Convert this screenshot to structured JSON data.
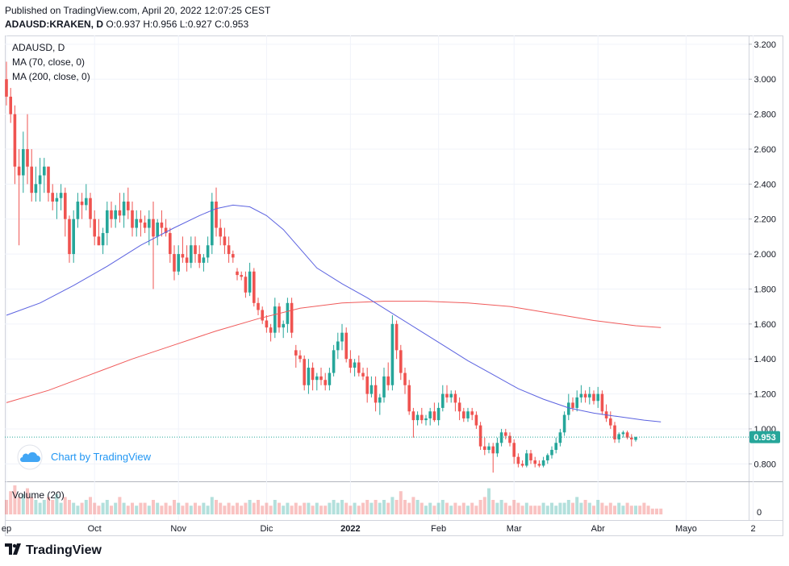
{
  "header": {
    "published": "Published on TradingView.com, April 20, 2022 12:07:25 CEST",
    "symbol": "ADAUSD:KRAKEN, D",
    "ohlc": "O:0.937 H:0.956 L:0.927 C:0.953"
  },
  "legend": {
    "title": "ADAUSD, D",
    "ma70": "MA (70, close, 0)",
    "ma200": "MA (200, close, 0)"
  },
  "watermark": "Chart by TradingView",
  "volume_label": "Volume (20)",
  "footer_brand": "TradingView",
  "colors": {
    "up": "#26a69a",
    "down": "#ef5350",
    "ma70": "#5b62e0",
    "ma200": "#f05a5a",
    "price_tag": "#26a69a"
  },
  "chart_data": {
    "type": "candlestick",
    "ylim": [
      0.7,
      3.25
    ],
    "y_ticks": [
      "3.200",
      "3.000",
      "2.800",
      "2.600",
      "2.400",
      "2.200",
      "2.000",
      "1.800",
      "1.600",
      "1.400",
      "1.200",
      "1.000",
      "0.800"
    ],
    "volume_ticks": [
      "0"
    ],
    "x_labels": [
      "ep",
      "Oct",
      "Nov",
      "Dic",
      "2022",
      "Feb",
      "Mar",
      "Abr",
      "Mayo",
      "2"
    ],
    "last_price": "0.953",
    "ohlc_series": [
      [
        3.0,
        3.1,
        2.85,
        2.9
      ],
      [
        2.9,
        2.95,
        2.75,
        2.8
      ],
      [
        2.8,
        2.85,
        2.4,
        2.5
      ],
      [
        2.5,
        2.6,
        2.05,
        2.45
      ],
      [
        2.45,
        2.7,
        2.35,
        2.6
      ],
      [
        2.6,
        2.8,
        2.4,
        2.5
      ],
      [
        2.5,
        2.6,
        2.3,
        2.35
      ],
      [
        2.35,
        2.5,
        2.3,
        2.4
      ],
      [
        2.4,
        2.55,
        2.3,
        2.45
      ],
      [
        2.45,
        2.55,
        2.35,
        2.5
      ],
      [
        2.5,
        2.5,
        2.3,
        2.35
      ],
      [
        2.35,
        2.4,
        2.25,
        2.3
      ],
      [
        2.3,
        2.35,
        2.2,
        2.32
      ],
      [
        2.32,
        2.4,
        2.25,
        2.35
      ],
      [
        2.35,
        2.38,
        2.1,
        2.2
      ],
      [
        2.2,
        2.22,
        1.95,
        2.0
      ],
      [
        2.0,
        2.25,
        1.95,
        2.2
      ],
      [
        2.2,
        2.35,
        2.15,
        2.3
      ],
      [
        2.3,
        2.35,
        2.2,
        2.28
      ],
      [
        2.28,
        2.4,
        2.25,
        2.32
      ],
      [
        2.32,
        2.35,
        2.15,
        2.2
      ],
      [
        2.2,
        2.25,
        2.05,
        2.1
      ],
      [
        2.1,
        2.2,
        2.05,
        2.05
      ],
      [
        2.05,
        2.15,
        2.0,
        2.12
      ],
      [
        2.12,
        2.3,
        2.05,
        2.25
      ],
      [
        2.25,
        2.3,
        2.15,
        2.2
      ],
      [
        2.2,
        2.28,
        2.15,
        2.25
      ],
      [
        2.25,
        2.35,
        2.18,
        2.22
      ],
      [
        2.22,
        2.35,
        2.15,
        2.3
      ],
      [
        2.3,
        2.38,
        2.2,
        2.25
      ],
      [
        2.25,
        2.3,
        2.1,
        2.15
      ],
      [
        2.15,
        2.25,
        2.1,
        2.2
      ],
      [
        2.2,
        2.25,
        2.1,
        2.18
      ],
      [
        2.18,
        2.22,
        2.12,
        2.15
      ],
      [
        2.15,
        2.25,
        2.05,
        2.2
      ],
      [
        2.2,
        2.3,
        1.8,
        2.1
      ],
      [
        2.1,
        2.2,
        2.05,
        2.18
      ],
      [
        2.18,
        2.25,
        2.1,
        2.15
      ],
      [
        2.15,
        2.2,
        2.1,
        2.12
      ],
      [
        2.12,
        2.15,
        1.95,
        2.0
      ],
      [
        2.0,
        2.05,
        1.85,
        1.9
      ],
      [
        1.9,
        2.05,
        1.88,
        2.0
      ],
      [
        2.0,
        2.1,
        1.95,
        1.98
      ],
      [
        1.98,
        2.05,
        1.9,
        1.95
      ],
      [
        1.95,
        2.1,
        1.92,
        2.05
      ],
      [
        2.05,
        2.1,
        1.95,
        2.0
      ],
      [
        2.0,
        2.05,
        1.92,
        1.95
      ],
      [
        1.95,
        2.0,
        1.9,
        1.98
      ],
      [
        1.98,
        2.1,
        1.95,
        2.05
      ],
      [
        2.05,
        2.35,
        2.0,
        2.3
      ],
      [
        2.3,
        2.38,
        2.1,
        2.15
      ],
      [
        2.15,
        2.2,
        2.05,
        2.1
      ],
      [
        2.1,
        2.15,
        2.0,
        2.05
      ],
      [
        2.05,
        2.1,
        1.95,
        2.0
      ],
      [
        2.0,
        2.02,
        1.95,
        1.98
      ],
      [
        1.9,
        1.92,
        1.85,
        1.88
      ],
      [
        1.88,
        1.9,
        1.85,
        1.87
      ],
      [
        1.87,
        1.9,
        1.75,
        1.78
      ],
      [
        1.78,
        1.95,
        1.76,
        1.9
      ],
      [
        1.9,
        1.92,
        1.7,
        1.72
      ],
      [
        1.72,
        1.75,
        1.65,
        1.68
      ],
      [
        1.68,
        1.7,
        1.6,
        1.62
      ],
      [
        1.62,
        1.65,
        1.55,
        1.58
      ],
      [
        1.58,
        1.6,
        1.5,
        1.55
      ],
      [
        1.55,
        1.75,
        1.52,
        1.7
      ],
      [
        1.7,
        1.72,
        1.55,
        1.58
      ],
      [
        1.58,
        1.62,
        1.52,
        1.6
      ],
      [
        1.6,
        1.75,
        1.55,
        1.72
      ],
      [
        1.72,
        1.75,
        1.52,
        1.55
      ],
      [
        1.45,
        1.48,
        1.35,
        1.42
      ],
      [
        1.42,
        1.45,
        1.38,
        1.4
      ],
      [
        1.4,
        1.42,
        1.22,
        1.25
      ],
      [
        1.25,
        1.4,
        1.2,
        1.35
      ],
      [
        1.35,
        1.38,
        1.22,
        1.28
      ],
      [
        1.28,
        1.32,
        1.22,
        1.3
      ],
      [
        1.3,
        1.35,
        1.25,
        1.28
      ],
      [
        1.28,
        1.32,
        1.22,
        1.25
      ],
      [
        1.25,
        1.35,
        1.22,
        1.32
      ],
      [
        1.32,
        1.48,
        1.3,
        1.45
      ],
      [
        1.45,
        1.55,
        1.4,
        1.5
      ],
      [
        1.5,
        1.6,
        1.45,
        1.55
      ],
      [
        1.55,
        1.58,
        1.38,
        1.4
      ],
      [
        1.4,
        1.45,
        1.32,
        1.35
      ],
      [
        1.35,
        1.4,
        1.3,
        1.38
      ],
      [
        1.38,
        1.42,
        1.3,
        1.32
      ],
      [
        1.32,
        1.35,
        1.28,
        1.3
      ],
      [
        1.3,
        1.35,
        1.15,
        1.2
      ],
      [
        1.2,
        1.3,
        1.18,
        1.25
      ],
      [
        1.25,
        1.3,
        1.1,
        1.15
      ],
      [
        1.15,
        1.2,
        1.08,
        1.18
      ],
      [
        1.18,
        1.35,
        1.15,
        1.3
      ],
      [
        1.3,
        1.38,
        1.22,
        1.25
      ],
      [
        1.25,
        1.65,
        1.22,
        1.6
      ],
      [
        1.6,
        1.62,
        1.4,
        1.45
      ],
      [
        1.45,
        1.48,
        1.28,
        1.32
      ],
      [
        1.32,
        1.35,
        1.2,
        1.25
      ],
      [
        1.25,
        1.28,
        1.08,
        1.1
      ],
      [
        1.1,
        1.12,
        0.95,
        1.05
      ],
      [
        1.05,
        1.1,
        1.02,
        1.08
      ],
      [
        1.08,
        1.12,
        1.03,
        1.05
      ],
      [
        1.05,
        1.08,
        1.02,
        1.06
      ],
      [
        1.06,
        1.12,
        1.02,
        1.1
      ],
      [
        1.1,
        1.15,
        1.04,
        1.05
      ],
      [
        1.05,
        1.15,
        1.02,
        1.12
      ],
      [
        1.12,
        1.25,
        1.1,
        1.2
      ],
      [
        1.2,
        1.25,
        1.15,
        1.18
      ],
      [
        1.18,
        1.22,
        1.15,
        1.2
      ],
      [
        1.2,
        1.22,
        1.1,
        1.15
      ],
      [
        1.15,
        1.18,
        1.05,
        1.1
      ],
      [
        1.1,
        1.12,
        1.04,
        1.06
      ],
      [
        1.06,
        1.12,
        1.04,
        1.1
      ],
      [
        1.1,
        1.12,
        1.05,
        1.08
      ],
      [
        1.08,
        1.1,
        1.0,
        1.02
      ],
      [
        1.02,
        1.04,
        0.88,
        0.9
      ],
      [
        0.9,
        0.95,
        0.85,
        0.88
      ],
      [
        0.88,
        0.92,
        0.86,
        0.9
      ],
      [
        0.9,
        0.92,
        0.75,
        0.86
      ],
      [
        0.86,
        0.95,
        0.84,
        0.92
      ],
      [
        0.92,
        1.0,
        0.9,
        0.98
      ],
      [
        0.98,
        1.0,
        0.94,
        0.96
      ],
      [
        0.96,
        0.98,
        0.9,
        0.92
      ],
      [
        0.92,
        0.94,
        0.8,
        0.84
      ],
      [
        0.84,
        0.86,
        0.78,
        0.8
      ],
      [
        0.8,
        0.82,
        0.78,
        0.79
      ],
      [
        0.79,
        0.88,
        0.78,
        0.86
      ],
      [
        0.86,
        0.88,
        0.8,
        0.82
      ],
      [
        0.82,
        0.84,
        0.78,
        0.8
      ],
      [
        0.8,
        0.82,
        0.78,
        0.79
      ],
      [
        0.79,
        0.84,
        0.78,
        0.82
      ],
      [
        0.82,
        0.86,
        0.8,
        0.85
      ],
      [
        0.85,
        0.9,
        0.83,
        0.88
      ],
      [
        0.88,
        0.95,
        0.86,
        0.92
      ],
      [
        0.92,
        1.0,
        0.9,
        0.98
      ],
      [
        0.98,
        1.1,
        0.96,
        1.08
      ],
      [
        1.08,
        1.2,
        1.05,
        1.15
      ],
      [
        1.15,
        1.18,
        1.1,
        1.12
      ],
      [
        1.12,
        1.22,
        1.1,
        1.18
      ],
      [
        1.18,
        1.25,
        1.15,
        1.2
      ],
      [
        1.2,
        1.22,
        1.15,
        1.18
      ],
      [
        1.18,
        1.24,
        1.14,
        1.2
      ],
      [
        1.2,
        1.22,
        1.14,
        1.16
      ],
      [
        1.16,
        1.24,
        1.12,
        1.2
      ],
      [
        1.2,
        1.22,
        1.08,
        1.1
      ],
      [
        1.1,
        1.14,
        1.04,
        1.06
      ],
      [
        1.06,
        1.1,
        1.0,
        1.02
      ],
      [
        1.02,
        1.04,
        0.92,
        0.94
      ],
      [
        0.94,
        0.98,
        0.92,
        0.97
      ],
      [
        0.97,
        0.99,
        0.95,
        0.98
      ],
      [
        0.98,
        0.99,
        0.94,
        0.95
      ],
      [
        0.95,
        0.97,
        0.9,
        0.94
      ],
      [
        0.937,
        0.956,
        0.927,
        0.953
      ]
    ],
    "ma70_points": [
      [
        0,
        1.65
      ],
      [
        8,
        1.72
      ],
      [
        16,
        1.82
      ],
      [
        24,
        1.93
      ],
      [
        32,
        2.05
      ],
      [
        40,
        2.15
      ],
      [
        46,
        2.22
      ],
      [
        50,
        2.26
      ],
      [
        54,
        2.28
      ],
      [
        58,
        2.27
      ],
      [
        62,
        2.22
      ],
      [
        66,
        2.14
      ],
      [
        70,
        2.03
      ],
      [
        74,
        1.92
      ],
      [
        80,
        1.83
      ],
      [
        86,
        1.75
      ],
      [
        92,
        1.66
      ],
      [
        98,
        1.57
      ],
      [
        104,
        1.48
      ],
      [
        110,
        1.39
      ],
      [
        116,
        1.31
      ],
      [
        122,
        1.23
      ],
      [
        128,
        1.17
      ],
      [
        134,
        1.12
      ],
      [
        140,
        1.09
      ],
      [
        146,
        1.07
      ],
      [
        152,
        1.05
      ],
      [
        156,
        1.04
      ]
    ],
    "ma200_points": [
      [
        0,
        1.15
      ],
      [
        10,
        1.22
      ],
      [
        20,
        1.31
      ],
      [
        30,
        1.4
      ],
      [
        40,
        1.48
      ],
      [
        50,
        1.56
      ],
      [
        60,
        1.63
      ],
      [
        70,
        1.69
      ],
      [
        80,
        1.72
      ],
      [
        90,
        1.73
      ],
      [
        100,
        1.73
      ],
      [
        110,
        1.72
      ],
      [
        120,
        1.7
      ],
      [
        130,
        1.66
      ],
      [
        140,
        1.62
      ],
      [
        150,
        1.59
      ],
      [
        156,
        1.58
      ]
    ],
    "volume": [
      5,
      8,
      10,
      6,
      7,
      9,
      6,
      5,
      4,
      5,
      6,
      5,
      7,
      4,
      6,
      5,
      4,
      3,
      4,
      5,
      6,
      4,
      3,
      4,
      5,
      3,
      4,
      6,
      4,
      3,
      4,
      3,
      4,
      4,
      3,
      5,
      4,
      3,
      4,
      3,
      5,
      4,
      3,
      4,
      3,
      4,
      3,
      4,
      3,
      6,
      5,
      4,
      3,
      4,
      3,
      4,
      3,
      4,
      5,
      4,
      5,
      3,
      4,
      3,
      5,
      4,
      3,
      4,
      3,
      4,
      3,
      4,
      4,
      3,
      4,
      3,
      3,
      4,
      5,
      4,
      5,
      4,
      3,
      4,
      3,
      4,
      5,
      4,
      5,
      4,
      5,
      4,
      6,
      5,
      8,
      5,
      4,
      6,
      5,
      4,
      3,
      4,
      3,
      4,
      5,
      4,
      3,
      4,
      3,
      4,
      3,
      4,
      3,
      5,
      6,
      9,
      5,
      4,
      5,
      4,
      3,
      5,
      4,
      3,
      4,
      3,
      3,
      3,
      4,
      3,
      4,
      3,
      4,
      4,
      5,
      4,
      6,
      4,
      5,
      4,
      3,
      5,
      4,
      3,
      4,
      3,
      4,
      3,
      4,
      3,
      3,
      3,
      4,
      3,
      2,
      2,
      2
    ]
  }
}
